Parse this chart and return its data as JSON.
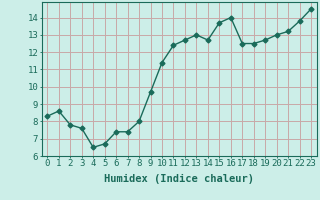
{
  "x": [
    0,
    1,
    2,
    3,
    4,
    5,
    6,
    7,
    8,
    9,
    10,
    11,
    12,
    13,
    14,
    15,
    16,
    17,
    18,
    19,
    20,
    21,
    22,
    23
  ],
  "y": [
    8.3,
    8.6,
    7.8,
    7.6,
    6.5,
    6.7,
    7.4,
    7.4,
    8.0,
    9.7,
    11.4,
    12.4,
    12.7,
    13.0,
    12.7,
    13.7,
    14.0,
    12.5,
    12.5,
    12.7,
    13.0,
    13.2,
    13.8,
    14.5
  ],
  "line_color": "#1a6b5a",
  "marker": "D",
  "markersize": 2.5,
  "linewidth": 1.0,
  "bg_color": "#cceee8",
  "grid_color": "#c8a8a8",
  "xlabel": "Humidex (Indice chaleur)",
  "xlim": [
    -0.5,
    23.5
  ],
  "ylim": [
    6,
    14.9
  ],
  "yticks": [
    6,
    7,
    8,
    9,
    10,
    11,
    12,
    13,
    14
  ],
  "xticks": [
    0,
    1,
    2,
    3,
    4,
    5,
    6,
    7,
    8,
    9,
    10,
    11,
    12,
    13,
    14,
    15,
    16,
    17,
    18,
    19,
    20,
    21,
    22,
    23
  ],
  "xlabel_fontsize": 7.5,
  "tick_fontsize": 6.5,
  "axis_color": "#1a6b5a",
  "tick_color": "#1a6b5a"
}
